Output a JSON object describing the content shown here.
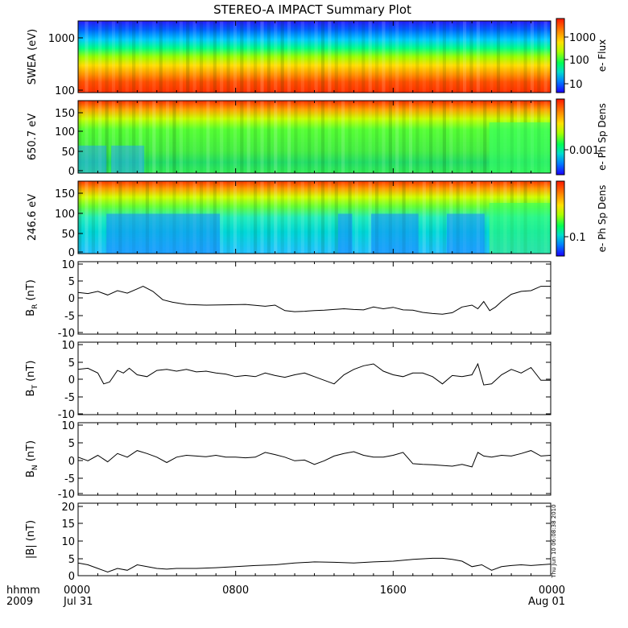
{
  "chart_data": {
    "type": "line",
    "title": "STEREO-A IMPACT Summary Plot",
    "timestamp_note": "Thu Jun 10 06:08:38 2010",
    "x_axis": {
      "row1_label": "hhmm",
      "row2_label": "2009",
      "ticks": [
        {
          "hour": 0,
          "label": "0000",
          "sublabel": "Jul 31"
        },
        {
          "hour": 8,
          "label": "0800",
          "sublabel": ""
        },
        {
          "hour": 16,
          "label": "1600",
          "sublabel": ""
        },
        {
          "hour": 24,
          "label": "0000",
          "sublabel": "Aug 01"
        }
      ],
      "range": [
        0,
        24
      ],
      "units": "hours from 2009-07-31 00:00"
    },
    "spectrograms": [
      {
        "id": "swea",
        "ylabel": "SWEA (eV)",
        "y_scale": "log",
        "y_ticks": [
          "1000",
          "100"
        ],
        "colorbar_label": "e- Flux",
        "colorbar_ticks": [
          "1000",
          "100",
          "10"
        ],
        "colors": [
          "#0000ff",
          "#00ccff",
          "#00ff66",
          "#b0ff00",
          "#ffdd00",
          "#ff8800",
          "#ff2a00"
        ]
      },
      {
        "id": "pad650",
        "ylabel": "650.7 eV",
        "y_range": [
          0,
          180
        ],
        "y_ticks": [
          "150",
          "100",
          "50",
          "0"
        ],
        "colorbar_label": "e- Ph Sp Dens",
        "colorbar_ticks": [
          "0.001"
        ]
      },
      {
        "id": "pad246",
        "ylabel": "246.6 eV",
        "y_range": [
          0,
          180
        ],
        "y_ticks": [
          "150",
          "100",
          "50",
          "0"
        ],
        "colorbar_label": "e- Ph Sp Dens",
        "colorbar_ticks": [
          "0.1"
        ]
      }
    ],
    "series": [
      {
        "id": "br",
        "name": "BR",
        "ylabel_main": "B",
        "ylabel_sub": "R",
        "ylabel_unit": "(nT)",
        "ylim": [
          -10,
          10
        ],
        "y_ticks": [
          "10",
          "5",
          "0",
          "-5",
          "-10"
        ],
        "x": [
          0,
          0.5,
          1,
          1.5,
          2,
          2.5,
          3,
          3.3,
          3.8,
          4.3,
          4.8,
          5.5,
          6.5,
          7.5,
          8.5,
          9.5,
          10,
          10.5,
          11,
          11.5,
          12,
          12.5,
          13,
          13.5,
          14,
          14.5,
          15,
          15.5,
          16,
          16.5,
          17,
          17.5,
          18,
          18.5,
          19,
          19.5,
          20,
          20.3,
          20.6,
          20.9,
          21.2,
          21.5,
          22,
          22.5,
          23,
          23.5,
          24
        ],
        "values": [
          1.5,
          1.2,
          1.8,
          0.8,
          2.0,
          1.3,
          2.5,
          3.2,
          1.8,
          -0.5,
          -1.2,
          -1.8,
          -2.0,
          -1.9,
          -1.8,
          -2.3,
          -2.0,
          -3.5,
          -3.8,
          -3.7,
          -3.5,
          -3.4,
          -3.2,
          -3.0,
          -3.2,
          -3.3,
          -2.5,
          -3.0,
          -2.6,
          -3.3,
          -3.4,
          -4.0,
          -4.3,
          -4.5,
          -4.1,
          -2.5,
          -2.0,
          -3.0,
          -1.0,
          -3.5,
          -2.5,
          -1.0,
          1.0,
          1.8,
          2.0,
          3.2,
          3.2
        ]
      },
      {
        "id": "bt",
        "name": "BT",
        "ylabel_main": "B",
        "ylabel_sub": "T",
        "ylabel_unit": "(nT)",
        "ylim": [
          -10,
          10
        ],
        "y_ticks": [
          "10",
          "5",
          "0",
          "-5",
          "-10"
        ],
        "x": [
          0,
          0.5,
          1,
          1.3,
          1.6,
          2,
          2.3,
          2.6,
          3,
          3.5,
          4,
          4.5,
          5,
          5.5,
          6,
          6.5,
          7,
          7.5,
          8,
          8.5,
          9,
          9.5,
          10,
          10.5,
          11,
          11.5,
          12,
          12.5,
          13,
          13.5,
          14,
          14.5,
          15,
          15.5,
          16,
          16.5,
          17,
          17.5,
          18,
          18.5,
          19,
          19.5,
          20,
          20.3,
          20.6,
          21,
          21.5,
          22,
          22.5,
          23,
          23.5,
          24
        ],
        "values": [
          2.5,
          2.8,
          1.5,
          -1.5,
          -1.0,
          2.2,
          1.5,
          2.8,
          1.0,
          0.5,
          2.2,
          2.5,
          2.0,
          2.5,
          1.8,
          2.0,
          1.5,
          1.2,
          0.5,
          0.8,
          0.5,
          1.5,
          0.8,
          0.3,
          1.0,
          1.5,
          0.5,
          -0.5,
          -1.5,
          1.0,
          2.5,
          3.5,
          4.0,
          2.0,
          1.0,
          0.5,
          1.5,
          1.5,
          0.5,
          -1.5,
          0.8,
          0.5,
          1.0,
          4.0,
          -1.8,
          -1.5,
          1.0,
          2.5,
          1.5,
          3.0,
          -0.5,
          -0.5
        ]
      },
      {
        "id": "bn",
        "name": "BN",
        "ylabel_main": "B",
        "ylabel_sub": "N",
        "ylabel_unit": "(nT)",
        "ylim": [
          -10,
          10
        ],
        "y_ticks": [
          "10",
          "5",
          "0",
          "-5",
          "-10"
        ],
        "x": [
          0,
          0.5,
          1,
          1.5,
          2,
          2.5,
          3,
          3.5,
          4,
          4.5,
          5,
          5.5,
          6,
          6.5,
          7,
          7.5,
          8,
          8.5,
          9,
          9.5,
          10,
          10.5,
          11,
          11.5,
          12,
          12.5,
          13,
          13.5,
          14,
          14.5,
          15,
          15.5,
          16,
          16.5,
          17,
          17.5,
          18,
          18.5,
          19,
          19.5,
          20,
          20.3,
          20.6,
          21,
          21.5,
          22,
          22.5,
          23,
          23.5,
          24
        ],
        "values": [
          0.5,
          -0.5,
          1.0,
          -0.8,
          1.5,
          0.5,
          2.3,
          1.5,
          0.5,
          -1.0,
          0.5,
          1.0,
          0.8,
          0.6,
          1.0,
          0.5,
          0.5,
          0.3,
          0.5,
          1.8,
          1.2,
          0.5,
          -0.5,
          -0.3,
          -1.5,
          -0.5,
          0.8,
          1.5,
          2.0,
          1.0,
          0.5,
          0.5,
          1.0,
          1.8,
          -1.3,
          -1.5,
          -1.6,
          -1.8,
          -2.0,
          -1.5,
          -2.2,
          1.8,
          0.8,
          0.5,
          1.0,
          0.8,
          1.5,
          2.3,
          0.8,
          1.0
        ]
      },
      {
        "id": "bmag",
        "name": "|B|",
        "ylabel_main": "|B|",
        "ylabel_sub": "",
        "ylabel_unit": "(nT)",
        "ylim": [
          0,
          20
        ],
        "y_ticks": [
          "20",
          "15",
          "10",
          "5",
          "0"
        ],
        "x": [
          0,
          0.5,
          1,
          1.5,
          2,
          2.5,
          3,
          3.5,
          4,
          4.5,
          5,
          6,
          7,
          8,
          9,
          10,
          11,
          12,
          13,
          14,
          15,
          16,
          17,
          18,
          18.5,
          19,
          19.5,
          20,
          20.5,
          21,
          21.5,
          22,
          22.5,
          23,
          24
        ],
        "values": [
          3.5,
          3.0,
          2.0,
          1.0,
          2.0,
          1.5,
          3.0,
          2.5,
          2.0,
          1.8,
          2.0,
          2.0,
          2.2,
          2.5,
          2.8,
          3.0,
          3.5,
          3.8,
          3.7,
          3.5,
          3.8,
          4.0,
          4.5,
          4.8,
          4.8,
          4.5,
          4.0,
          2.5,
          3.0,
          1.5,
          2.5,
          2.8,
          3.0,
          2.8,
          3.2
        ]
      }
    ]
  }
}
